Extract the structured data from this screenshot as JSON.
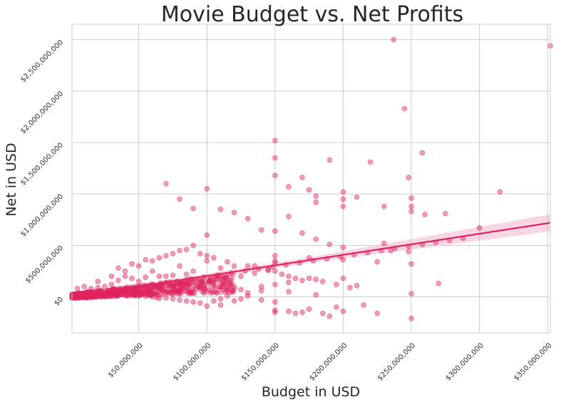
{
  "chart_data": {
    "type": "scatter",
    "title": "Movie Budget vs. Net Profits",
    "xlabel": "Budget in USD",
    "ylabel": "Net in USD",
    "xlim": [
      1000000,
      352000000
    ],
    "ylim": [
      -350000000,
      2650000000
    ],
    "grid": true,
    "x_ticks": [
      50000000,
      100000000,
      150000000,
      200000000,
      250000000,
      300000000,
      350000000
    ],
    "x_tick_labels": [
      "$50,000,000",
      "$100,000,000",
      "$150,000,000",
      "$200,000,000",
      "$250,000,000",
      "$300,000,000",
      "$350,000,000"
    ],
    "y_ticks": [
      0,
      500000000,
      1000000000,
      1500000000,
      2000000000,
      2500000000
    ],
    "y_tick_labels": [
      "$0",
      "$500,000,000",
      "$1,000,000,000",
      "$1,500,000,000",
      "$2,000,000,000",
      "$2,500,000,000"
    ],
    "colors": {
      "points": "#e0245e",
      "band": "#f0a6bf"
    },
    "trend_line": {
      "x": [
        1000000,
        352000000
      ],
      "y": [
        0,
        720000000
      ]
    },
    "x": [
      237000000,
      352000000,
      245000000,
      258000000,
      150000000,
      190000000,
      248000000,
      220000000,
      160000000,
      170000000,
      200000000,
      175000000,
      180000000,
      180000000,
      200000000,
      150000000,
      150000000,
      315000000,
      200000000,
      230000000,
      210000000,
      250000000,
      250000000,
      250000000,
      260000000,
      275000000,
      300000000,
      150000000,
      165000000,
      185000000,
      170000000,
      160000000,
      150000000,
      175000000,
      195000000,
      215000000,
      225000000,
      250000000,
      270000000,
      210000000,
      250000000,
      180000000,
      190000000,
      200000000,
      160000000,
      140000000,
      130000000,
      125000000,
      140000000,
      150000000,
      120000000,
      110000000,
      100000000,
      95000000,
      105000000,
      110000000,
      115000000,
      130000000,
      125000000,
      90000000,
      85000000,
      80000000,
      75000000,
      70000000,
      65000000,
      63000000,
      60000000,
      55000000,
      50000000,
      45000000,
      40000000,
      35000000,
      30000000,
      28000000,
      25000000,
      20000000,
      18000000,
      15000000,
      12000000,
      10000000,
      8000000,
      6000000,
      5000000,
      4000000,
      3000000,
      2000000,
      70000000,
      80000000,
      90000000,
      100000000,
      110000000,
      120000000,
      130000000,
      140000000,
      150000000,
      160000000,
      170000000,
      180000000,
      190000000,
      200000000,
      230000000,
      235000000,
      248000000,
      150000000,
      150000000,
      160000000,
      165000000,
      100000000,
      100000000,
      120000000,
      90000000,
      80000000,
      70000000,
      60000000,
      50000000,
      40000000,
      30000000,
      20000000,
      10000000,
      5000000,
      35000000,
      45000000,
      55000000,
      65000000,
      75000000,
      85000000,
      95000000,
      105000000,
      115000000,
      135000000,
      145000000,
      155000000,
      175000000,
      185000000,
      195000000,
      205000000,
      40000000,
      60000000,
      80000000,
      100000000,
      50000000,
      70000000,
      90000000,
      110000000,
      130000000,
      150000000,
      30000000,
      25000000,
      15000000,
      20000000,
      35000000,
      45000000,
      55000000,
      65000000,
      75000000,
      85000000,
      140000000,
      150000000,
      160000000,
      170000000,
      180000000,
      200000000,
      150000000,
      175000000,
      200000000,
      225000000,
      250000000,
      125000000,
      135000000,
      145000000,
      115000000,
      105000000,
      95000000,
      85000000,
      72000000,
      62000000,
      52000000,
      42000000,
      32000000,
      22000000,
      12000000,
      2000000,
      58000000,
      68000000,
      78000000,
      88000000,
      98000000,
      108000000,
      118000000,
      128000000,
      138000000,
      148000000,
      158000000,
      168000000,
      178000000,
      188000000,
      198000000,
      208000000,
      218000000,
      228000000,
      238000000,
      248000000,
      258000000,
      268000000,
      278000000,
      288000000
    ],
    "y": [
      2500000000,
      2440000000,
      1830000000,
      1400000000,
      1520000000,
      1330000000,
      1160000000,
      1310000000,
      1070000000,
      1160000000,
      1020000000,
      1040000000,
      980000000,
      920000000,
      880000000,
      1350000000,
      1180000000,
      1020000000,
      950000000,
      880000000,
      970000000,
      960000000,
      880000000,
      830000000,
      800000000,
      810000000,
      670000000,
      -150000000,
      -160000000,
      -160000000,
      -150000000,
      -140000000,
      -130000000,
      -120000000,
      -100000000,
      -80000000,
      -160000000,
      -210000000,
      130000000,
      110000000,
      30000000,
      20000000,
      -190000000,
      -140000000,
      50000000,
      60000000,
      10000000,
      -20000000,
      -30000000,
      -50000000,
      -40000000,
      -80000000,
      -90000000,
      -60000000,
      -40000000,
      -20000000,
      10000000,
      40000000,
      70000000,
      -50000000,
      -40000000,
      -30000000,
      -20000000,
      -10000000,
      -15000000,
      -5000000,
      0,
      5000000,
      10000000,
      15000000,
      20000000,
      25000000,
      30000000,
      20000000,
      10000000,
      5000000,
      0,
      -5000000,
      -10000000,
      -5000000,
      0,
      5000000,
      10000000,
      5000000,
      3000000,
      1000000,
      1100000000,
      950000000,
      860000000,
      1050000000,
      850000000,
      820000000,
      760000000,
      650000000,
      640000000,
      780000000,
      620000000,
      560000000,
      510000000,
      480000000,
      520000000,
      450000000,
      440000000,
      330000000,
      250000000,
      200000000,
      180000000,
      600000000,
      400000000,
      300000000,
      500000000,
      450000000,
      400000000,
      350000000,
      300000000,
      250000000,
      200000000,
      150000000,
      100000000,
      80000000,
      280000000,
      320000000,
      360000000,
      380000000,
      420000000,
      460000000,
      420000000,
      380000000,
      340000000,
      300000000,
      260000000,
      220000000,
      180000000,
      150000000,
      120000000,
      90000000,
      200000000,
      250000000,
      300000000,
      350000000,
      150000000,
      200000000,
      250000000,
      280000000,
      300000000,
      350000000,
      120000000,
      100000000,
      80000000,
      90000000,
      160000000,
      180000000,
      190000000,
      200000000,
      210000000,
      220000000,
      100000000,
      120000000,
      140000000,
      160000000,
      170000000,
      180000000,
      400000000,
      380000000,
      360000000,
      340000000,
      320000000,
      200000000,
      230000000,
      260000000,
      180000000,
      160000000,
      140000000,
      120000000,
      110000000,
      100000000,
      90000000,
      80000000,
      70000000,
      60000000,
      50000000,
      20000000,
      60000000,
      120000000,
      150000000,
      170000000,
      190000000,
      210000000,
      230000000,
      250000000,
      270000000,
      290000000,
      310000000,
      330000000,
      350000000,
      370000000,
      390000000,
      410000000,
      430000000,
      450000000,
      470000000,
      490000000,
      510000000,
      530000000,
      550000000,
      570000000
    ]
  }
}
